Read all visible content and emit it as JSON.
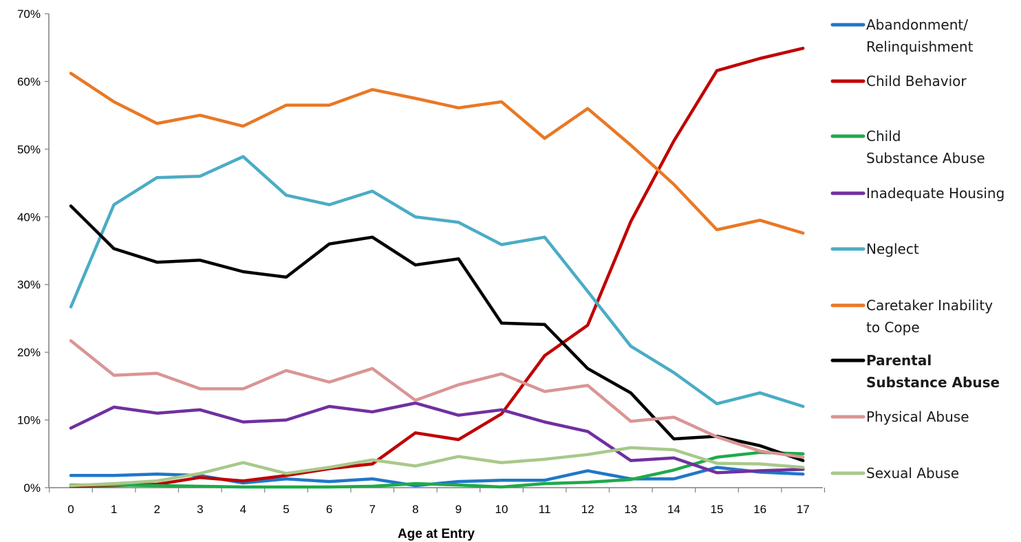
{
  "chart_data": {
    "type": "line",
    "title": "",
    "xlabel": "Age at Entry",
    "ylabel": "",
    "x": [
      0,
      1,
      2,
      3,
      4,
      5,
      6,
      7,
      8,
      9,
      10,
      11,
      12,
      13,
      14,
      15,
      16,
      17
    ],
    "x_tick_labels": [
      "0",
      "1",
      "2",
      "3",
      "4",
      "5",
      "6",
      "7",
      "8",
      "9",
      "10",
      "11",
      "12",
      "13",
      "14",
      "15",
      "16",
      "17"
    ],
    "ylim": [
      0,
      70
    ],
    "y_tick_labels": [
      "0%",
      "10%",
      "20%",
      "30%",
      "40%",
      "50%",
      "60%",
      "70%"
    ],
    "grid": false,
    "legend_position": "right",
    "series": [
      {
        "name": "Abandonment/ Relinquishment",
        "label_lines": [
          "Abandonment/",
          "Relinquishment"
        ],
        "color": "#1f77c8",
        "bold": false,
        "values": [
          1.8,
          1.8,
          2.0,
          1.8,
          0.7,
          1.3,
          0.9,
          1.3,
          0.3,
          0.9,
          1.1,
          1.1,
          2.5,
          1.3,
          1.3,
          3.0,
          2.3,
          2.0
        ]
      },
      {
        "name": "Child Behavior",
        "label_lines": [
          "Child Behavior"
        ],
        "color": "#c00000",
        "bold": false,
        "values": [
          0.2,
          0.3,
          0.5,
          1.5,
          1.0,
          1.8,
          2.8,
          3.5,
          8.1,
          7.1,
          10.9,
          19.5,
          24.0,
          39.3,
          51.2,
          61.6,
          63.4,
          64.9
        ]
      },
      {
        "name": "Child Substance Abuse",
        "label_lines": [
          "Child",
          "Substance Abuse"
        ],
        "color": "#1faa4a",
        "bold": false,
        "values": [
          0.4,
          0.4,
          0.3,
          0.2,
          0.1,
          0.1,
          0.1,
          0.2,
          0.6,
          0.4,
          0.1,
          0.6,
          0.8,
          1.2,
          2.6,
          4.5,
          5.2,
          5.0
        ]
      },
      {
        "name": "Inadequate Housing",
        "label_lines": [
          "Inadequate Housing"
        ],
        "color": "#7030a0",
        "bold": false,
        "values": [
          8.8,
          11.9,
          11.0,
          11.5,
          9.7,
          10.0,
          12.0,
          11.2,
          12.5,
          10.7,
          11.5,
          9.7,
          8.3,
          4.0,
          4.4,
          2.2,
          2.5,
          2.7
        ]
      },
      {
        "name": "Neglect",
        "label_lines": [
          "Neglect"
        ],
        "color": "#4bacc6",
        "bold": false,
        "values": [
          26.7,
          41.8,
          45.8,
          46.0,
          48.9,
          43.2,
          41.8,
          43.8,
          40.0,
          39.2,
          35.9,
          37.0,
          29.0,
          20.9,
          17.0,
          12.4,
          14.0,
          12.0
        ]
      },
      {
        "name": "Caretaker Inability to Cope",
        "label_lines": [
          "Caretaker Inability",
          " to Cope"
        ],
        "color": "#e97825",
        "bold": false,
        "values": [
          61.2,
          57.0,
          53.8,
          55.0,
          53.4,
          56.5,
          56.5,
          58.8,
          57.5,
          56.1,
          57.0,
          51.6,
          56.0,
          50.6,
          44.8,
          38.1,
          39.5,
          37.6
        ]
      },
      {
        "name": "Parental Substance Abuse",
        "label_lines": [
          "Parental",
          " Substance Abuse"
        ],
        "color": "#000000",
        "bold": true,
        "values": [
          41.6,
          35.3,
          33.3,
          33.6,
          31.9,
          31.1,
          36.0,
          37.0,
          32.9,
          33.8,
          24.3,
          24.1,
          17.6,
          14.0,
          7.2,
          7.6,
          6.2,
          4.0
        ]
      },
      {
        "name": "Physical Abuse",
        "label_lines": [
          "Physical Abuse"
        ],
        "color": "#d99594",
        "bold": false,
        "values": [
          21.7,
          16.6,
          16.9,
          14.6,
          14.6,
          17.3,
          15.6,
          17.6,
          12.9,
          15.2,
          16.8,
          14.2,
          15.1,
          9.8,
          10.4,
          7.5,
          5.4,
          4.5
        ]
      },
      {
        "name": "Sexual Abuse",
        "label_lines": [
          "Sexual Abuse"
        ],
        "color": "#a8c98a",
        "bold": false,
        "values": [
          0.3,
          0.6,
          1.0,
          2.1,
          3.7,
          2.1,
          3.0,
          4.1,
          3.2,
          4.6,
          3.7,
          4.2,
          4.9,
          5.9,
          5.6,
          3.6,
          3.5,
          3.0
        ]
      }
    ]
  }
}
